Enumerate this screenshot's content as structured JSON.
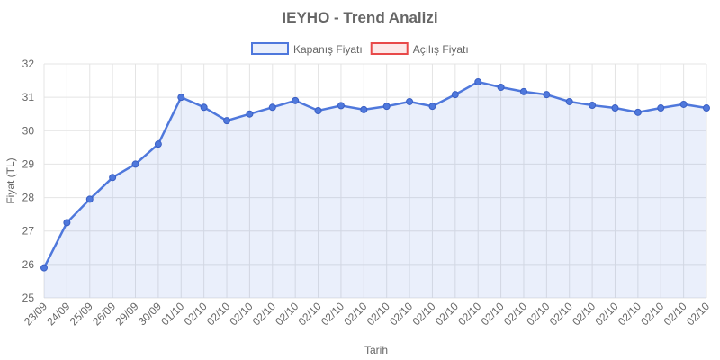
{
  "chart_data": {
    "type": "line",
    "title": "IEYHO - Trend Analizi",
    "x_label": "Tarih",
    "y_label": "Fiyat (TL)",
    "categories": [
      "23/09",
      "24/09",
      "25/09",
      "26/09",
      "29/09",
      "30/09",
      "01/10",
      "02/10",
      "02/10",
      "02/10",
      "02/10",
      "02/10",
      "02/10",
      "02/10",
      "02/10",
      "02/10",
      "02/10",
      "02/10",
      "02/10",
      "02/10",
      "02/10",
      "02/10",
      "02/10",
      "02/10",
      "02/10",
      "02/10",
      "02/10",
      "02/10",
      "02/10",
      "02/10"
    ],
    "series": [
      {
        "name": "Kapanış Fiyatı",
        "color": "#4f78dc",
        "fill": "rgba(79,120,220,0.12)",
        "values": [
          25.9,
          27.25,
          27.95,
          28.6,
          29.0,
          29.6,
          31.0,
          30.7,
          30.3,
          30.5,
          30.7,
          30.9,
          30.6,
          30.75,
          30.63,
          30.73,
          30.87,
          30.73,
          31.08,
          31.46,
          31.3,
          31.17,
          31.08,
          30.87,
          30.76,
          30.68,
          30.55,
          30.68,
          30.79,
          30.68
        ]
      },
      {
        "name": "Açılış Fiyatı",
        "color": "#e84a4a",
        "values": [
          null,
          null,
          null,
          null,
          null,
          null,
          null,
          null,
          null,
          null,
          null,
          null,
          null,
          null,
          null,
          null,
          null,
          null,
          null,
          null,
          null,
          null,
          null,
          null,
          null,
          null,
          null,
          null,
          null,
          null
        ]
      }
    ],
    "ylim": [
      25,
      32
    ],
    "yticks": [
      25,
      26,
      27,
      28,
      29,
      30,
      31,
      32
    ],
    "grid": true
  }
}
